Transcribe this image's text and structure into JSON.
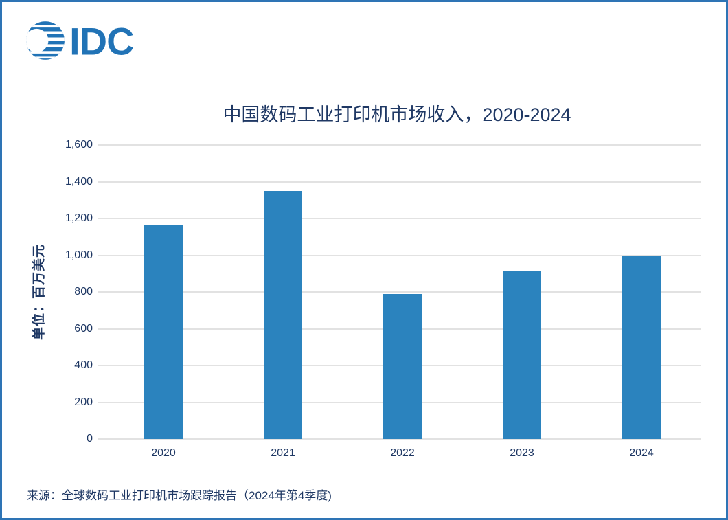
{
  "page": {
    "logo_text": "IDC",
    "title": "中国数码工业打印机市场收入，2020-2024",
    "source": "来源：全球数码工业打印机市场跟踪报告（2024年第4季度)"
  },
  "colors": {
    "bar": "#2B83BE",
    "title_text": "#1F3864",
    "axis_text": "#1F3864",
    "logo_blue": "#2173B6",
    "border": "#2E74B5",
    "gridline": "#C6C6C6"
  },
  "chart_data": {
    "type": "bar",
    "title": "中国数码工业打印机市场收入，2020-2024",
    "categories": [
      "2020",
      "2021",
      "2022",
      "2023",
      "2024"
    ],
    "values": [
      1165,
      1350,
      790,
      915,
      1000
    ],
    "xlabel": "",
    "ylabel": "单位：百万美元",
    "ylim": [
      0,
      1600
    ],
    "ytick_step": 200,
    "grid": "horizontal",
    "legend": "none"
  }
}
